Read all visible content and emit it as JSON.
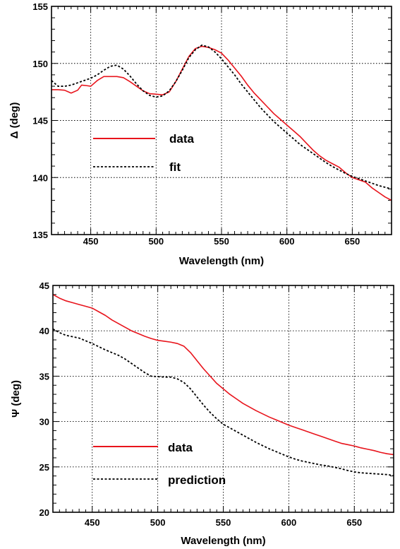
{
  "chart_data": [
    {
      "type": "line",
      "xlabel": "Wavelength (nm)",
      "ylabel": "Δ (deg)",
      "xlim": [
        420,
        680
      ],
      "ylim": [
        135,
        155
      ],
      "x_ticks": [
        450,
        500,
        550,
        600,
        650
      ],
      "y_ticks": [
        135,
        140,
        145,
        150,
        155
      ],
      "grid": true,
      "legend_position": "lower-left",
      "series": [
        {
          "name": "data",
          "color": "#e8141c",
          "style": "solid",
          "points": [
            [
              420,
              147.7
            ],
            [
              425,
              147.7
            ],
            [
              430,
              147.65
            ],
            [
              435,
              147.4
            ],
            [
              440,
              147.65
            ],
            [
              443,
              148.1
            ],
            [
              447,
              148.05
            ],
            [
              450,
              148.0
            ],
            [
              455,
              148.5
            ],
            [
              460,
              148.85
            ],
            [
              465,
              148.85
            ],
            [
              470,
              148.85
            ],
            [
              475,
              148.75
            ],
            [
              480,
              148.4
            ],
            [
              485,
              148.0
            ],
            [
              490,
              147.6
            ],
            [
              495,
              147.35
            ],
            [
              500,
              147.3
            ],
            [
              505,
              147.25
            ],
            [
              510,
              147.5
            ],
            [
              515,
              148.4
            ],
            [
              520,
              149.5
            ],
            [
              525,
              150.6
            ],
            [
              530,
              151.3
            ],
            [
              535,
              151.5
            ],
            [
              540,
              151.4
            ],
            [
              545,
              151.2
            ],
            [
              550,
              150.9
            ],
            [
              555,
              150.3
            ],
            [
              560,
              149.6
            ],
            [
              565,
              148.9
            ],
            [
              570,
              148.1
            ],
            [
              575,
              147.4
            ],
            [
              580,
              146.8
            ],
            [
              585,
              146.2
            ],
            [
              590,
              145.6
            ],
            [
              595,
              145.1
            ],
            [
              600,
              144.6
            ],
            [
              605,
              144.1
            ],
            [
              610,
              143.6
            ],
            [
              615,
              143.0
            ],
            [
              620,
              142.4
            ],
            [
              625,
              141.9
            ],
            [
              630,
              141.5
            ],
            [
              635,
              141.2
            ],
            [
              640,
              140.9
            ],
            [
              645,
              140.4
            ],
            [
              650,
              140.0
            ],
            [
              655,
              139.8
            ],
            [
              660,
              139.6
            ],
            [
              665,
              139.1
            ],
            [
              670,
              138.7
            ],
            [
              675,
              138.3
            ],
            [
              680,
              138.0
            ]
          ]
        },
        {
          "name": "fit",
          "color": "#000000",
          "style": "dashed",
          "points": [
            [
              420,
              148.5
            ],
            [
              425,
              148.0
            ],
            [
              430,
              148.0
            ],
            [
              435,
              148.1
            ],
            [
              440,
              148.3
            ],
            [
              445,
              148.5
            ],
            [
              450,
              148.7
            ],
            [
              455,
              149.0
            ],
            [
              460,
              149.4
            ],
            [
              465,
              149.75
            ],
            [
              470,
              149.85
            ],
            [
              475,
              149.5
            ],
            [
              480,
              148.9
            ],
            [
              485,
              148.2
            ],
            [
              490,
              147.6
            ],
            [
              495,
              147.2
            ],
            [
              500,
              147.05
            ],
            [
              505,
              147.15
            ],
            [
              510,
              147.6
            ],
            [
              515,
              148.4
            ],
            [
              520,
              149.4
            ],
            [
              525,
              150.5
            ],
            [
              530,
              151.2
            ],
            [
              535,
              151.6
            ],
            [
              540,
              151.45
            ],
            [
              545,
              151.0
            ],
            [
              550,
              150.4
            ],
            [
              555,
              149.7
            ],
            [
              560,
              149.0
            ],
            [
              565,
              148.2
            ],
            [
              570,
              147.5
            ],
            [
              575,
              146.8
            ],
            [
              580,
              146.1
            ],
            [
              585,
              145.5
            ],
            [
              590,
              144.9
            ],
            [
              595,
              144.4
            ],
            [
              600,
              143.9
            ],
            [
              605,
              143.4
            ],
            [
              610,
              142.9
            ],
            [
              615,
              142.5
            ],
            [
              620,
              142.1
            ],
            [
              625,
              141.7
            ],
            [
              630,
              141.3
            ],
            [
              635,
              140.95
            ],
            [
              640,
              140.65
            ],
            [
              645,
              140.35
            ],
            [
              650,
              140.1
            ],
            [
              655,
              139.9
            ],
            [
              660,
              139.7
            ],
            [
              665,
              139.5
            ],
            [
              670,
              139.3
            ],
            [
              675,
              139.15
            ],
            [
              680,
              139.0
            ]
          ]
        }
      ]
    },
    {
      "type": "line",
      "xlabel": "Wavelength (nm)",
      "ylabel": "Ψ (deg)",
      "xlim": [
        420,
        680
      ],
      "ylim": [
        20,
        45
      ],
      "x_ticks": [
        450,
        500,
        550,
        600,
        650
      ],
      "y_ticks": [
        20,
        25,
        30,
        35,
        40,
        45
      ],
      "grid": true,
      "legend_position": "lower-left",
      "series": [
        {
          "name": "data",
          "color": "#e8141c",
          "style": "solid",
          "points": [
            [
              420,
              44.0
            ],
            [
              425,
              43.6
            ],
            [
              430,
              43.3
            ],
            [
              435,
              43.1
            ],
            [
              440,
              42.9
            ],
            [
              445,
              42.7
            ],
            [
              450,
              42.5
            ],
            [
              455,
              42.1
            ],
            [
              460,
              41.7
            ],
            [
              465,
              41.2
            ],
            [
              470,
              40.8
            ],
            [
              475,
              40.4
            ],
            [
              480,
              40.0
            ],
            [
              485,
              39.7
            ],
            [
              490,
              39.4
            ],
            [
              495,
              39.15
            ],
            [
              500,
              38.95
            ],
            [
              505,
              38.85
            ],
            [
              510,
              38.75
            ],
            [
              515,
              38.6
            ],
            [
              520,
              38.3
            ],
            [
              525,
              37.6
            ],
            [
              530,
              36.7
            ],
            [
              535,
              35.8
            ],
            [
              540,
              35.0
            ],
            [
              545,
              34.2
            ],
            [
              550,
              33.6
            ],
            [
              555,
              33.0
            ],
            [
              560,
              32.5
            ],
            [
              565,
              32.0
            ],
            [
              570,
              31.6
            ],
            [
              575,
              31.2
            ],
            [
              580,
              30.85
            ],
            [
              585,
              30.5
            ],
            [
              590,
              30.2
            ],
            [
              595,
              29.9
            ],
            [
              600,
              29.6
            ],
            [
              605,
              29.35
            ],
            [
              610,
              29.1
            ],
            [
              615,
              28.85
            ],
            [
              620,
              28.6
            ],
            [
              625,
              28.35
            ],
            [
              630,
              28.1
            ],
            [
              635,
              27.85
            ],
            [
              640,
              27.6
            ],
            [
              645,
              27.45
            ],
            [
              650,
              27.3
            ],
            [
              655,
              27.1
            ],
            [
              660,
              26.95
            ],
            [
              665,
              26.8
            ],
            [
              670,
              26.6
            ],
            [
              675,
              26.45
            ],
            [
              680,
              26.35
            ]
          ]
        },
        {
          "name": "prediction",
          "color": "#000000",
          "style": "dashed",
          "points": [
            [
              420,
              40.2
            ],
            [
              425,
              39.8
            ],
            [
              430,
              39.5
            ],
            [
              435,
              39.35
            ],
            [
              440,
              39.2
            ],
            [
              445,
              38.9
            ],
            [
              450,
              38.6
            ],
            [
              455,
              38.25
            ],
            [
              460,
              37.9
            ],
            [
              465,
              37.6
            ],
            [
              470,
              37.3
            ],
            [
              475,
              36.9
            ],
            [
              480,
              36.4
            ],
            [
              485,
              35.9
            ],
            [
              490,
              35.4
            ],
            [
              495,
              35.0
            ],
            [
              500,
              34.95
            ],
            [
              505,
              34.9
            ],
            [
              510,
              34.9
            ],
            [
              515,
              34.7
            ],
            [
              520,
              34.3
            ],
            [
              525,
              33.6
            ],
            [
              530,
              32.7
            ],
            [
              535,
              31.8
            ],
            [
              540,
              31.0
            ],
            [
              545,
              30.3
            ],
            [
              550,
              29.7
            ],
            [
              555,
              29.3
            ],
            [
              560,
              28.9
            ],
            [
              565,
              28.5
            ],
            [
              570,
              28.1
            ],
            [
              575,
              27.7
            ],
            [
              580,
              27.35
            ],
            [
              585,
              27.0
            ],
            [
              590,
              26.7
            ],
            [
              595,
              26.4
            ],
            [
              600,
              26.1
            ],
            [
              605,
              25.85
            ],
            [
              610,
              25.65
            ],
            [
              615,
              25.5
            ],
            [
              620,
              25.35
            ],
            [
              625,
              25.2
            ],
            [
              630,
              25.1
            ],
            [
              635,
              24.95
            ],
            [
              640,
              24.8
            ],
            [
              645,
              24.6
            ],
            [
              650,
              24.45
            ],
            [
              655,
              24.35
            ],
            [
              660,
              24.3
            ],
            [
              665,
              24.25
            ],
            [
              670,
              24.2
            ],
            [
              675,
              24.15
            ],
            [
              680,
              24.05
            ]
          ]
        }
      ]
    }
  ]
}
